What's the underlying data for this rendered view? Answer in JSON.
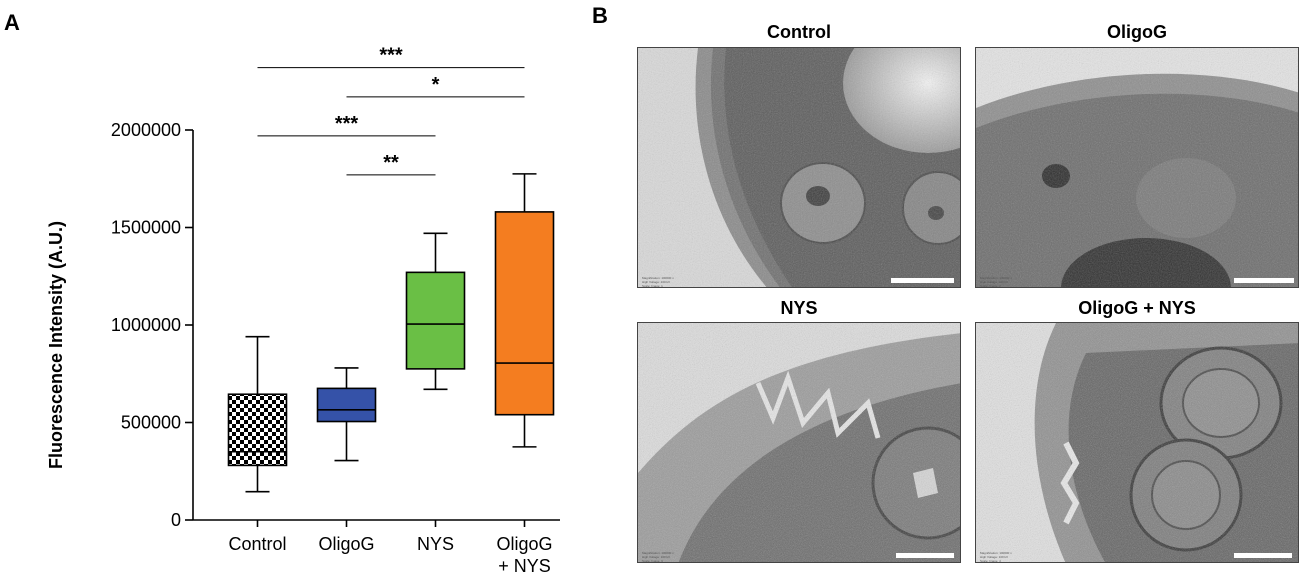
{
  "panel_a_label": "A",
  "panel_b_label": "B",
  "chart_data": {
    "type": "box",
    "ylabel": "Fluorescence Intensity (A.U.)",
    "ylim": [
      0,
      2000000
    ],
    "yticks": [
      0,
      500000,
      1000000,
      1500000,
      2000000
    ],
    "ytick_labels": [
      "0",
      "500000",
      "1000000",
      "1500000",
      "2000000"
    ],
    "categories": [
      "Control",
      "OligoG",
      "NYS",
      "OligoG\n+ NYS"
    ],
    "boxes": [
      {
        "category": "Control",
        "min": 145000,
        "q1": 280000,
        "median": 350000,
        "q3": 645000,
        "max": 940000,
        "fill": "checker"
      },
      {
        "category": "OligoG",
        "min": 305000,
        "q1": 505000,
        "median": 565000,
        "q3": 675000,
        "max": 780000,
        "fill": "#3552a8"
      },
      {
        "category": "NYS",
        "min": 670000,
        "q1": 775000,
        "median": 1005000,
        "q3": 1270000,
        "max": 1470000,
        "fill": "#6abf45"
      },
      {
        "category": "OligoG\n+ NYS",
        "min": 375000,
        "q1": 540000,
        "median": 805000,
        "q3": 1580000,
        "max": 1775000,
        "fill": "#f47d20"
      }
    ],
    "significance": [
      {
        "from": "Control",
        "to": "OligoG\n+ NYS",
        "label": "***",
        "y": 2320000
      },
      {
        "from": "OligoG",
        "to": "OligoG\n+ NYS",
        "label": "*",
        "y": 2170000
      },
      {
        "from": "Control",
        "to": "NYS",
        "label": "***",
        "y": 1970000
      },
      {
        "from": "OligoG",
        "to": "NYS",
        "label": "**",
        "y": 1770000
      }
    ],
    "grid": false
  },
  "micrographs": [
    {
      "title": "Control",
      "meta": [
        "Magnification: 100000 x",
        "High Voltage: 100 kV",
        "Scale: Image_1"
      ]
    },
    {
      "title": "OligoG",
      "meta": [
        "Magnification: 100000 x",
        "High Voltage: 100 kV",
        "Scale: Image_2"
      ]
    },
    {
      "title": "NYS",
      "meta": [
        "Magnification: 100000 x",
        "High Voltage: 100 kV",
        "Scale: Image_3"
      ]
    },
    {
      "title": "OligoG + NYS",
      "meta": [
        "Magnification: 100000 x",
        "High Voltage: 100 kV",
        "Scale: Image_4"
      ]
    }
  ]
}
